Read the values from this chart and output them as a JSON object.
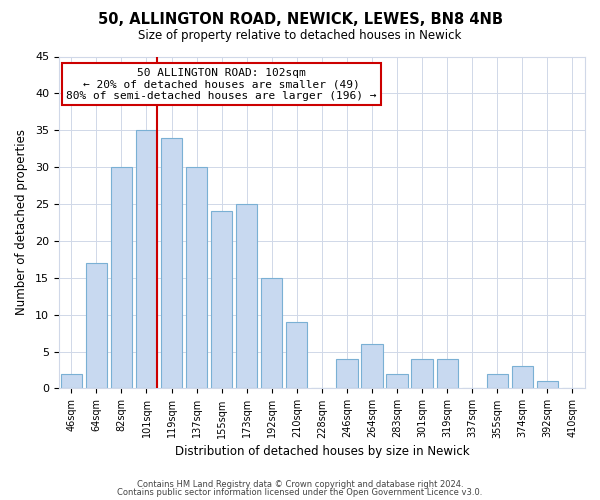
{
  "title": "50, ALLINGTON ROAD, NEWICK, LEWES, BN8 4NB",
  "subtitle": "Size of property relative to detached houses in Newick",
  "xlabel": "Distribution of detached houses by size in Newick",
  "ylabel": "Number of detached properties",
  "bar_labels": [
    "46sqm",
    "64sqm",
    "82sqm",
    "101sqm",
    "119sqm",
    "137sqm",
    "155sqm",
    "173sqm",
    "192sqm",
    "210sqm",
    "228sqm",
    "246sqm",
    "264sqm",
    "283sqm",
    "301sqm",
    "319sqm",
    "337sqm",
    "355sqm",
    "374sqm",
    "392sqm",
    "410sqm"
  ],
  "bar_values": [
    2,
    17,
    30,
    35,
    34,
    30,
    24,
    25,
    15,
    9,
    0,
    4,
    6,
    2,
    4,
    4,
    0,
    2,
    3,
    1,
    0
  ],
  "bar_color": "#c8d9f0",
  "bar_edge_color": "#7ab0d4",
  "vline_color": "#cc0000",
  "annotation_line0": "50 ALLINGTON ROAD: 102sqm",
  "annotation_line1": "← 20% of detached houses are smaller (49)",
  "annotation_line2": "80% of semi-detached houses are larger (196) →",
  "annotation_box_color": "#ffffff",
  "annotation_box_edge": "#cc0000",
  "ylim": [
    0,
    45
  ],
  "yticks": [
    0,
    5,
    10,
    15,
    20,
    25,
    30,
    35,
    40,
    45
  ],
  "footer1": "Contains HM Land Registry data © Crown copyright and database right 2024.",
  "footer2": "Contains public sector information licensed under the Open Government Licence v3.0.",
  "background_color": "#ffffff",
  "grid_color": "#d0d8e8"
}
